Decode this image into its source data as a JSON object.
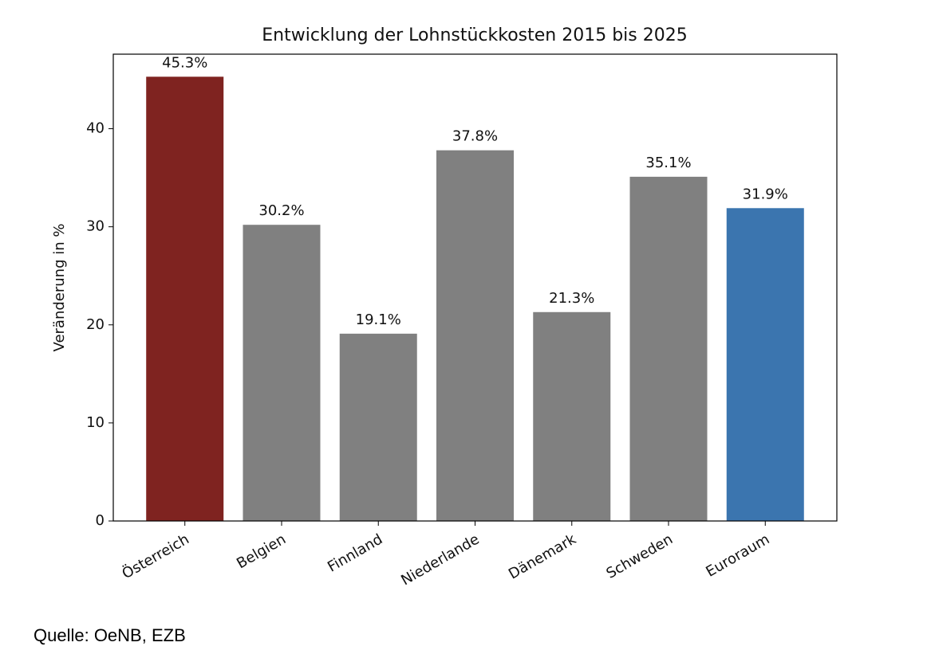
{
  "chart_data": {
    "type": "bar",
    "title": "Entwicklung der Lohnstückkosten 2015 bis 2025",
    "y_label": "Veränderung in %",
    "categories": [
      "Österreich",
      "Belgien",
      "Finnland",
      "Niederlande",
      "Dänemark",
      "Schweden",
      "Euroraum"
    ],
    "values": [
      45.3,
      30.2,
      19.1,
      37.8,
      21.3,
      35.1,
      31.9
    ],
    "value_labels": [
      "45.3%",
      "30.2%",
      "19.1%",
      "37.8%",
      "21.3%",
      "35.1%",
      "31.9%"
    ],
    "colors": [
      "#7f2320",
      "#808080",
      "#808080",
      "#808080",
      "#808080",
      "#808080",
      "#3b75af"
    ],
    "ylim": [
      0,
      47.6
    ],
    "yticks": [
      0,
      10,
      20,
      30,
      40
    ],
    "source": "Quelle: OeNB, EZB"
  }
}
